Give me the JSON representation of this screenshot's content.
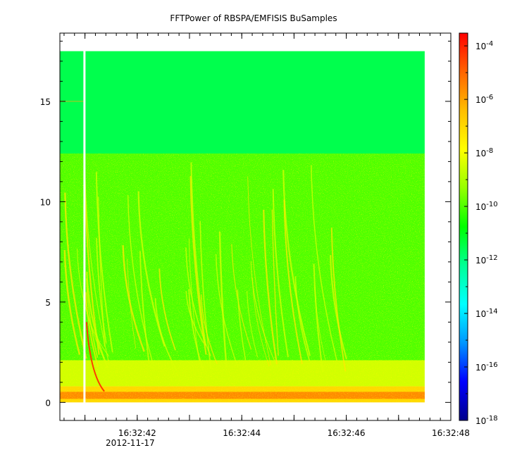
{
  "chart_data": {
    "type": "heatmap",
    "title": "FFTPower of RBSPA/EMFISIS  BuSamples",
    "xlabel": "",
    "ylabel": "",
    "x_ticks": [
      {
        "value": 41,
        "label": ""
      },
      {
        "value": 42,
        "label": "16:32:42"
      },
      {
        "value": 43,
        "label": ""
      },
      {
        "value": 44,
        "label": "16:32:44"
      },
      {
        "value": 45,
        "label": ""
      },
      {
        "value": 46,
        "label": "16:32:46"
      },
      {
        "value": 47,
        "label": ""
      },
      {
        "value": 48,
        "label": "16:32:48"
      }
    ],
    "x_date_label": "2012-11-17",
    "xlim_seconds": [
      40.52,
      48.0
    ],
    "y_ticks": [
      0,
      5,
      10,
      15
    ],
    "ylim": [
      -0.9,
      18.4
    ],
    "data_extent": {
      "x": [
        40.52,
        47.5
      ],
      "y": [
        0.0,
        17.5
      ]
    },
    "gap": {
      "x": [
        40.97,
        41.0
      ]
    },
    "bands": [
      {
        "y": [
          12.4,
          17.5
        ],
        "log_power": -11.5
      },
      {
        "y": [
          2.1,
          12.4
        ],
        "log_power": -10.0
      },
      {
        "y": [
          0.8,
          2.1
        ],
        "log_power": -8.5
      },
      {
        "y": [
          0.0,
          0.8
        ],
        "log_power": -7.0
      }
    ],
    "colorbar": {
      "scale": "log",
      "range": [
        1e-18,
        0.0003
      ],
      "tick_labels": [
        {
          "base": "10",
          "exp": "-4"
        },
        {
          "base": "10",
          "exp": "-6"
        },
        {
          "base": "10",
          "exp": "-8"
        },
        {
          "base": "10",
          "exp": "-10"
        },
        {
          "base": "10",
          "exp": "-12"
        },
        {
          "base": "10",
          "exp": "-14"
        },
        {
          "base": "10",
          "exp": "-16"
        },
        {
          "base": "10",
          "exp": "-18"
        }
      ],
      "colormap": [
        "#00008c",
        "#0000ff",
        "#0096ff",
        "#00ffff",
        "#00ff96",
        "#00ff00",
        "#96ff00",
        "#ffff00",
        "#ffbe00",
        "#ff6400",
        "#ff0000"
      ]
    }
  }
}
